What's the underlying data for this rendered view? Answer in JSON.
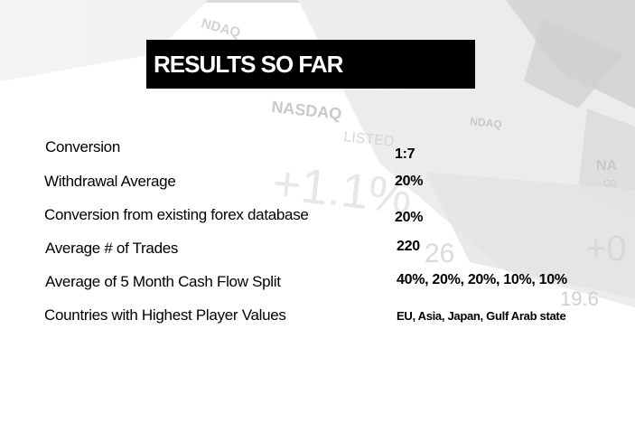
{
  "slide": {
    "title": "RESULTS SO FAR",
    "background_logo": "nasdaq-watermark",
    "rows": [
      {
        "label": "Conversion",
        "value": "1:7"
      },
      {
        "label": "Withdrawal Average",
        "value": "20%"
      },
      {
        "label": "Conversion from existing forex database",
        "value": "20%"
      },
      {
        "label": "Average # of Trades",
        "value": "220"
      },
      {
        "label": "Average of 5 Month Cash Flow Split",
        "value": "40%, 20%, 20%, 10%, 10%"
      },
      {
        "label": "Countries with Highest Player Values",
        "value": "EU, Asia, Japan, Gulf Arab state"
      }
    ]
  },
  "watermark": {
    "texts": [
      "NDAQ",
      "NASDAQ",
      "LISTED",
      "NDAQ",
      "+1.1%",
      "+0",
      "26",
      "19.6",
      "NA",
      "CO"
    ]
  },
  "colors": {
    "title_bar": "#000000",
    "title_text": "#ffffff",
    "body_text": "#000000",
    "watermark": "#cfcfcf"
  }
}
